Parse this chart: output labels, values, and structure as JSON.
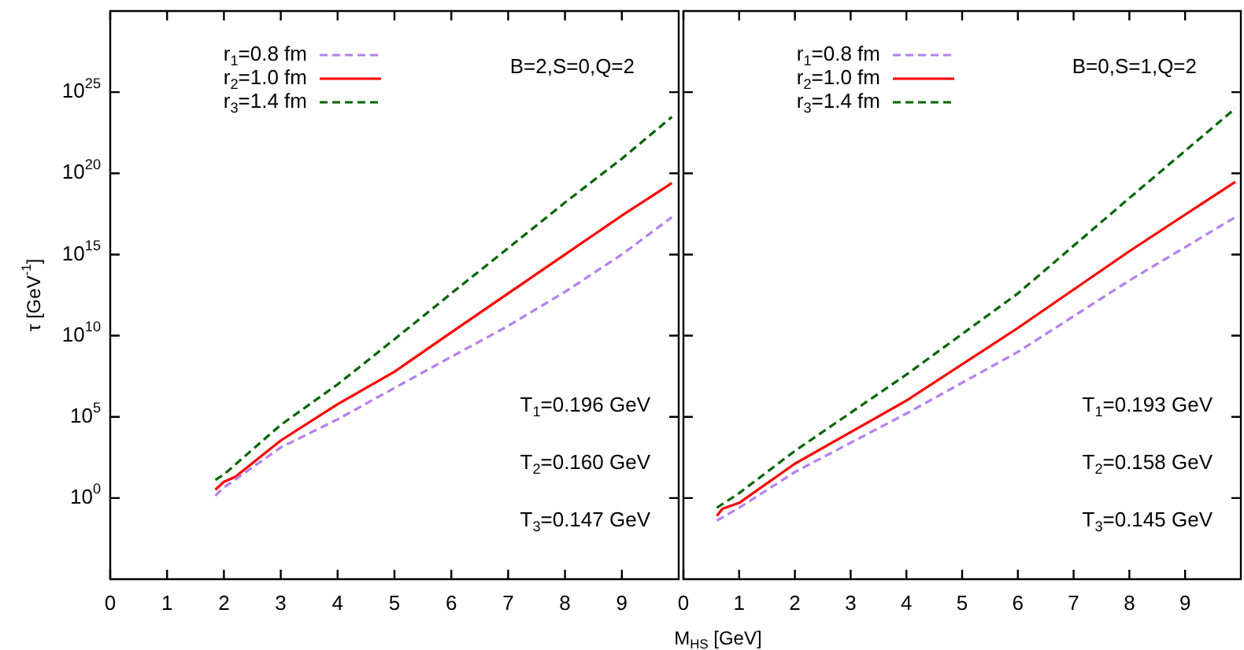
{
  "chart_data": [
    {
      "type": "line",
      "ylabel": "τ [GeV$^{-1}$]",
      "annotations": [
        "B=2,S=0,Q=2",
        "T$_{1}$=0.196 GeV",
        "T$_{2}$=0.160 GeV",
        "T$_{3}$=0.147 GeV"
      ],
      "log": "y",
      "grid": false,
      "legend": "top left",
      "marker": "none",
      "xlim": [
        0,
        10
      ],
      "xticks": [
        0,
        1,
        2,
        3,
        4,
        5,
        6,
        7,
        8,
        9
      ],
      "ylim": [
        1e-05,
        1e+30
      ],
      "yticks": [
        {
          "value": 1,
          "label": "10$^{0}$"
        },
        {
          "value": 100000.0,
          "label": "10$^{5}$"
        },
        {
          "value": 10000000000.0,
          "label": "10$^{10}$"
        },
        {
          "value": 1000000000000000.0,
          "label": "10$^{15}$"
        },
        {
          "value": 1e+20,
          "label": "10$^{20}$"
        },
        {
          "value": 1e+25,
          "label": "10$^{25}$"
        }
      ],
      "series": [
        {
          "name": "r$_{1}$=0.8 fm",
          "color": "#b480f0",
          "line_style": "dashed",
          "x": [
            1.85,
            2,
            3,
            4,
            5,
            6,
            7,
            8,
            9,
            9.88
          ],
          "values": [
            1.4,
            4.5,
            1300.0,
            70000.0,
            6000000.0,
            500000000.0,
            40000000000.0,
            5000000000000.0,
            1000000000000000.0,
            2e+17
          ]
        },
        {
          "name": "r$_{2}$=1.0 fm",
          "color": "#ff0000",
          "line_style": "solid",
          "x": [
            1.85,
            2,
            2.2,
            3,
            4,
            5,
            6,
            7,
            8,
            9,
            9.88
          ],
          "values": [
            3.2,
            10,
            20,
            3500.0,
            600000.0,
            60000000.0,
            16000000000.0,
            4000000000000.0,
            1000000000000000.0,
            2.5e+17,
            2.5e+19
          ]
        },
        {
          "name": "r$_{3}$=1.4 fm",
          "color": "#006400",
          "line_style": "dashed",
          "x": [
            1.85,
            2,
            3,
            4,
            5,
            6,
            7,
            8,
            9,
            9.88
          ],
          "values": [
            13,
            28,
            32000.0,
            10000000.0,
            6000000000.0,
            4000000000000.0,
            2500000000000000.0,
            1.6e+18,
            8e+20,
            3e+23
          ]
        }
      ]
    },
    {
      "type": "line",
      "xlabel": "M$_{HS}$ [GeV]",
      "annotations": [
        "B=0,S=1,Q=2",
        "T$_{1}$=0.193 GeV",
        "T$_{2}$=0.158 GeV",
        "T$_{3}$=0.145 GeV"
      ],
      "log": "y",
      "grid": false,
      "legend": "top left",
      "marker": "none",
      "tick_labels": "x",
      "xlim": [
        0,
        10
      ],
      "xticks": [
        0,
        1,
        2,
        3,
        4,
        5,
        6,
        7,
        8,
        9
      ],
      "ylim": [
        1e-05,
        1e+30
      ],
      "yticks": [
        {
          "value": 1,
          "label": null
        },
        {
          "value": 100000.0,
          "label": null
        },
        {
          "value": 10000000000.0,
          "label": null
        },
        {
          "value": 1000000000000000.0,
          "label": null
        },
        {
          "value": 1e+20,
          "label": null
        },
        {
          "value": 1e+25,
          "label": null
        }
      ],
      "series": [
        {
          "name": "r$_{1}$=0.8 fm",
          "color": "#b480f0",
          "line_style": "dashed",
          "x": [
            0.6,
            1,
            2,
            4,
            6,
            8,
            9.9
          ],
          "values": [
            0.04,
            0.25,
            40,
            160000.0,
            1000000000.0,
            25000000000000.0,
            2e+17
          ]
        },
        {
          "name": "r$_{2}$=1.0 fm",
          "color": "#ff0000",
          "line_style": "solid",
          "x": [
            0.6,
            0.7,
            1,
            2,
            4,
            6,
            8,
            9.9
          ],
          "values": [
            0.08,
            0.22,
            0.5,
            130,
            1000000.0,
            30000000000.0,
            1600000000000000.0,
            3e+19
          ]
        },
        {
          "name": "r$_{3}$=1.4 fm",
          "color": "#006400",
          "line_style": "dashed",
          "x": [
            0.6,
            1,
            2,
            4,
            6,
            8,
            9.9
          ],
          "values": [
            0.25,
            2,
            800,
            40000000.0,
            4000000000000.0,
            3e+18,
            1e+24
          ]
        }
      ]
    }
  ]
}
